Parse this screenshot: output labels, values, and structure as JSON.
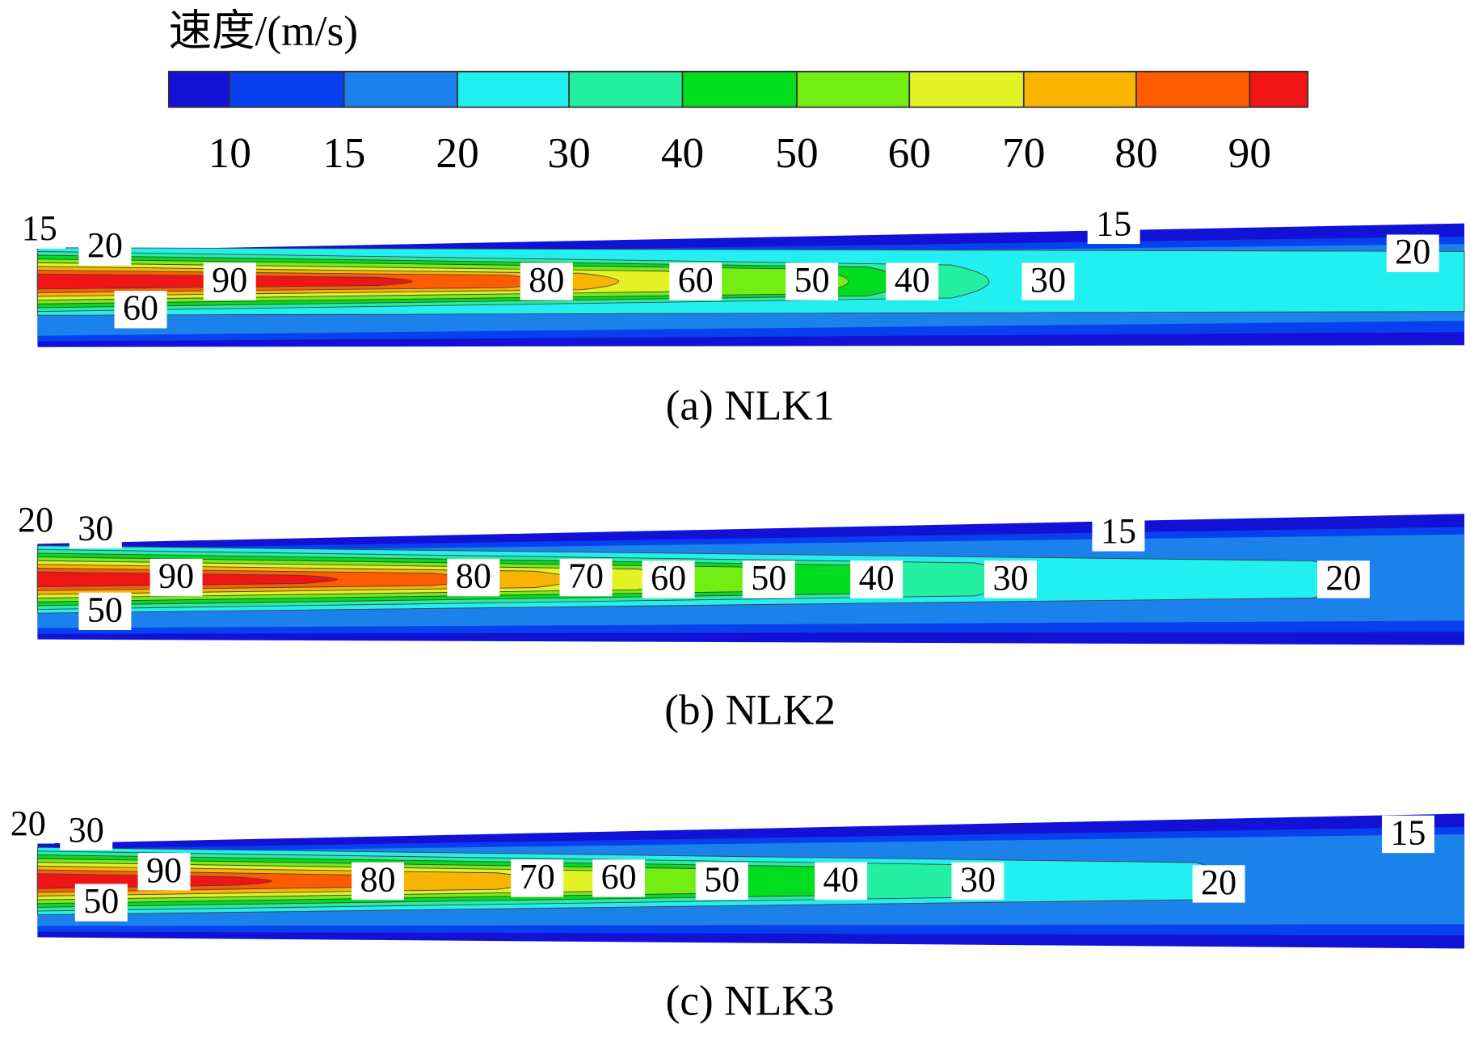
{
  "colorbar": {
    "title": "速度/(m/s)",
    "colors": [
      "#1212d6",
      "#0840ee",
      "#1a82ea",
      "#22f0f0",
      "#22f0a0",
      "#00dc1e",
      "#72ee12",
      "#e2f224",
      "#f8b400",
      "#ff5c00",
      "#f01414"
    ],
    "ticks": [
      10,
      15,
      20,
      30,
      40,
      50,
      60,
      70,
      80,
      90
    ]
  },
  "panels": [
    {
      "caption": "(a) NLK1",
      "labels": [
        15,
        20,
        90,
        80,
        60,
        50,
        40,
        30,
        15,
        20,
        60
      ]
    },
    {
      "caption": "(b) NLK2",
      "labels": [
        20,
        30,
        90,
        80,
        70,
        60,
        50,
        40,
        30,
        15,
        20,
        50
      ]
    },
    {
      "caption": "(c) NLK3",
      "labels": [
        20,
        30,
        90,
        80,
        70,
        60,
        50,
        40,
        30,
        20,
        15,
        50
      ]
    }
  ]
}
